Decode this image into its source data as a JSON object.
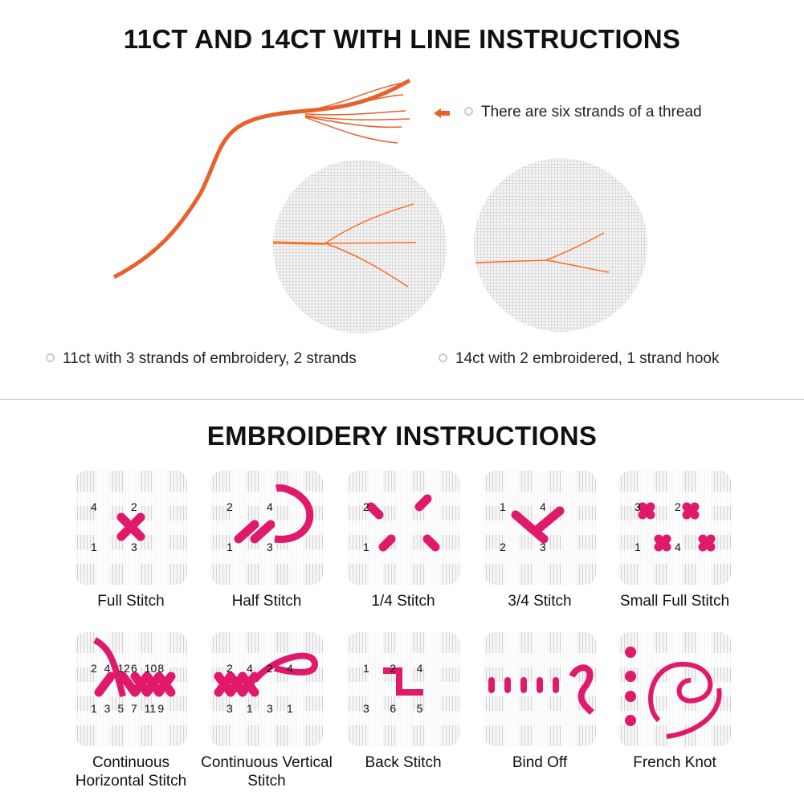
{
  "section1": {
    "title": "11CT AND 14CT WITH LINE INSTRUCTIONS",
    "thread_note": "There are six strands of a thread",
    "caption_11ct": "11ct with 3 strands of embroidery, 2 strands",
    "caption_14ct": "14ct with 2 embroidered, 1 strand hook",
    "thread_color": "#e8602a"
  },
  "section2": {
    "title": "EMBROIDERY INSTRUCTIONS",
    "stitch_color": "#e0196a",
    "stitches": [
      {
        "label": "Full Stitch",
        "digits": [
          "4",
          "2",
          "1",
          "3"
        ]
      },
      {
        "label": "Half Stitch",
        "digits": [
          "2",
          "4",
          "1",
          "3"
        ]
      },
      {
        "label": "1/4 Stitch",
        "digits": [
          "2",
          "1"
        ]
      },
      {
        "label": "3/4 Stitch",
        "digits": [
          "1",
          "4",
          "2",
          "3"
        ]
      },
      {
        "label": "Small Full Stitch",
        "digits": [
          "3",
          "2",
          "1",
          "4"
        ]
      },
      {
        "label": "Continuous Horizontal Stitch",
        "digits": [
          "2",
          "4",
          "12",
          "6",
          "10",
          "8",
          "1",
          "3",
          "5",
          "7",
          "11",
          "9"
        ]
      },
      {
        "label": "Continuous Vertical Stitch",
        "digits": [
          "2",
          "4",
          "2",
          "4",
          "3",
          "1",
          "3",
          "1"
        ]
      },
      {
        "label": "Back Stitch",
        "digits": [
          "1",
          "2",
          "4",
          "3",
          "6",
          "5"
        ]
      },
      {
        "label": "Bind Off",
        "digits": []
      },
      {
        "label": "French Knot",
        "digits": []
      }
    ]
  }
}
